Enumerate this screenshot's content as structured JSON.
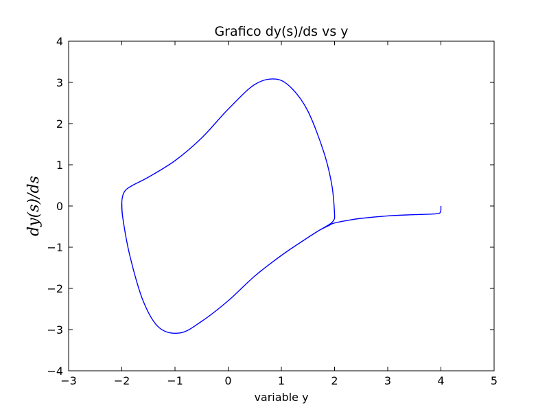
{
  "chart_data": {
    "type": "line",
    "title": "Grafico dy(s)/ds vs y",
    "xlabel": "variable y",
    "ylabel": "dy(s)/ds",
    "xlim": [
      -3,
      5
    ],
    "ylim": [
      -4,
      4
    ],
    "xticks": [
      -3,
      -2,
      -1,
      0,
      1,
      2,
      3,
      4,
      5
    ],
    "yticks": [
      -4,
      -3,
      -2,
      -1,
      0,
      1,
      2,
      3,
      4
    ],
    "xtick_labels": [
      "−3",
      "−2",
      "−1",
      "0",
      "1",
      "2",
      "3",
      "4",
      "5"
    ],
    "ytick_labels": [
      "−4",
      "−3",
      "−2",
      "−1",
      "0",
      "1",
      "2",
      "3",
      "4"
    ],
    "grid": false,
    "series": [
      {
        "color": "#0000ff",
        "x": [
          4.0,
          3.99,
          3.9,
          3.5,
          3.0,
          2.5,
          2.2,
          1.98,
          1.9,
          1.7,
          1.4,
          1.0,
          0.5,
          0.0,
          -0.5,
          -0.9,
          -1.3,
          -1.6,
          -1.85,
          -1.98,
          -2.0,
          -1.95,
          -1.8,
          -1.5,
          -1.0,
          -0.5,
          0.0,
          0.5,
          0.9,
          1.2,
          1.5,
          1.8,
          1.95,
          2.0,
          1.98,
          1.9,
          1.7,
          1.4,
          1.0,
          0.5,
          0.0,
          -0.5,
          -0.9,
          -1.3,
          -1.6,
          -1.85,
          -1.98,
          -2.0
        ],
        "y": [
          0.0,
          -0.15,
          -0.19,
          -0.21,
          -0.24,
          -0.3,
          -0.36,
          -0.42,
          -0.47,
          -0.6,
          -0.85,
          -1.2,
          -1.7,
          -2.3,
          -2.8,
          -3.08,
          -2.95,
          -2.3,
          -1.2,
          -0.3,
          0.1,
          0.35,
          0.5,
          0.7,
          1.1,
          1.65,
          2.35,
          2.95,
          3.08,
          2.85,
          2.3,
          1.3,
          0.5,
          -0.2,
          -0.35,
          -0.45,
          -0.6,
          -0.85,
          -1.2,
          -1.7,
          -2.3,
          -2.8,
          -3.08,
          -2.95,
          -2.3,
          -1.2,
          -0.3,
          0.1
        ]
      }
    ]
  }
}
